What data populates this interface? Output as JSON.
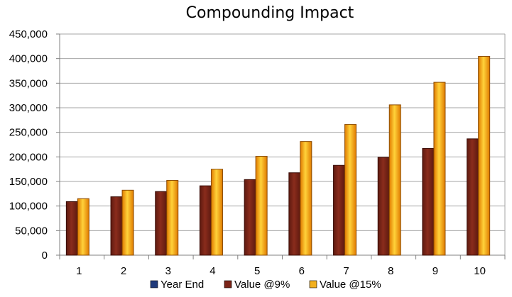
{
  "chart_data": {
    "type": "bar",
    "title": "Compounding Impact",
    "xlabel": "",
    "ylabel": "",
    "categories": [
      "1",
      "2",
      "3",
      "4",
      "5",
      "6",
      "7",
      "8",
      "9",
      "10"
    ],
    "series": [
      {
        "name": "Year End",
        "color": "#1F3A7A",
        "values": [
          0,
          0,
          0,
          0,
          0,
          0,
          0,
          0,
          0,
          0
        ]
      },
      {
        "name": "Value @9%",
        "color": "#7B2418",
        "values": [
          109000,
          118810,
          129503,
          141158,
          153862,
          167710,
          182804,
          199256,
          217189,
          236736
        ]
      },
      {
        "name": "Value @15%",
        "color": "#F2B01E",
        "values": [
          115000,
          132250,
          152088,
          174901,
          201136,
          231306,
          266002,
          305902,
          351788,
          404556
        ]
      }
    ],
    "ylim": [
      0,
      450000
    ],
    "yticks": [
      0,
      50000,
      100000,
      150000,
      200000,
      250000,
      300000,
      350000,
      400000,
      450000
    ],
    "ytick_labels": [
      "0",
      "50,000",
      "100,000",
      "150,000",
      "200,000",
      "250,000",
      "300,000",
      "350,000",
      "400,000",
      "450,000"
    ],
    "grid": true,
    "legend_position": "bottom"
  }
}
